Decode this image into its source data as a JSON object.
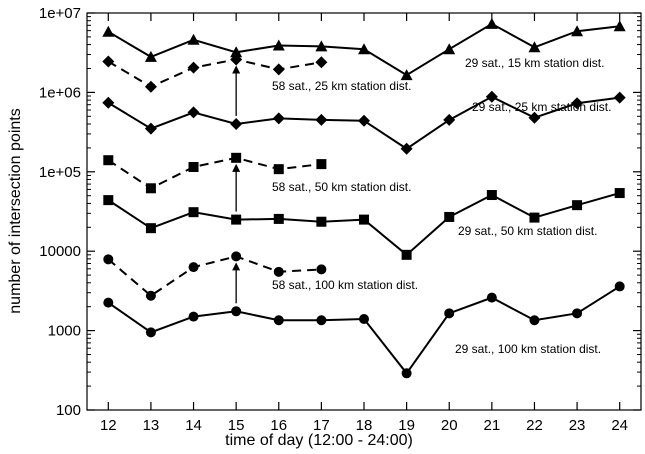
{
  "chart_data": {
    "type": "line",
    "xlabel": "time of day (12:00 - 24:00)",
    "ylabel": "number of intersection points",
    "x_ticks": [
      12,
      13,
      14,
      15,
      16,
      17,
      18,
      19,
      20,
      21,
      22,
      23,
      24
    ],
    "y_scale": "log",
    "y_ticks": [
      "100",
      "1000",
      "10000",
      "1e+05",
      "1e+06",
      "1e+07"
    ],
    "xlim": [
      11.5,
      24.5
    ],
    "ylim": [
      100,
      10000000
    ],
    "grid": false,
    "series": [
      {
        "name": "29 sat., 15 km station dist.",
        "marker": "triangle",
        "line": "solid",
        "x": [
          12,
          13,
          14,
          15,
          16,
          17,
          18,
          19,
          20,
          21,
          22,
          23,
          24
        ],
        "y": [
          5800000,
          2800000,
          4600000,
          3200000,
          3900000,
          3800000,
          3500000,
          1650000,
          3500000,
          7300000,
          3700000,
          5900000,
          6800000
        ]
      },
      {
        "name": "58 sat., 25 km station dist.",
        "marker": "diamond",
        "line": "dashed",
        "x": [
          12,
          13,
          14,
          15,
          16,
          17
        ],
        "y": [
          2450000,
          1180000,
          2050000,
          2600000,
          1950000,
          2400000
        ]
      },
      {
        "name": "29 sat., 25 km station dist.",
        "marker": "diamond",
        "line": "solid",
        "x": [
          12,
          13,
          14,
          15,
          16,
          17,
          18,
          19,
          20,
          21,
          22,
          23,
          24
        ],
        "y": [
          740000,
          350000,
          560000,
          400000,
          470000,
          450000,
          440000,
          195000,
          450000,
          880000,
          480000,
          730000,
          860000
        ]
      },
      {
        "name": "58 sat., 50 km station dist.",
        "marker": "square",
        "line": "dashed",
        "x": [
          12,
          13,
          14,
          15,
          16,
          17
        ],
        "y": [
          140000,
          62000,
          115000,
          150000,
          108000,
          125000
        ]
      },
      {
        "name": "29 sat., 50 km station dist.",
        "marker": "square",
        "line": "solid",
        "x": [
          12,
          13,
          14,
          15,
          16,
          17,
          18,
          19,
          20,
          21,
          22,
          23,
          24
        ],
        "y": [
          44000,
          19500,
          31000,
          25000,
          25500,
          23500,
          25000,
          9000,
          27000,
          51000,
          26500,
          38000,
          54000
        ]
      },
      {
        "name": "58 sat., 100 km station dist.",
        "marker": "circle",
        "line": "dashed",
        "x": [
          12,
          13,
          14,
          15,
          16,
          17
        ],
        "y": [
          7900,
          2750,
          6300,
          8600,
          5500,
          5900
        ]
      },
      {
        "name": "29 sat., 100 km station dist.",
        "marker": "circle",
        "line": "solid",
        "x": [
          12,
          13,
          14,
          15,
          16,
          17,
          18,
          19,
          20,
          21,
          22,
          23,
          24
        ],
        "y": [
          2250,
          950,
          1500,
          1750,
          1350,
          1350,
          1400,
          290,
          1650,
          2600,
          1350,
          1650,
          3600
        ]
      }
    ],
    "arrows": [
      {
        "x": 15,
        "from": 400000,
        "to": 2600000
      },
      {
        "x": 15,
        "from": 25000,
        "to": 150000
      },
      {
        "x": 15,
        "from": 1750,
        "to": 8600
      }
    ],
    "annotations": [
      {
        "text": "29 sat., 15 km station dist."
      },
      {
        "text": "58 sat., 25 km station dist."
      },
      {
        "text": "29 sat., 25 km station dist."
      },
      {
        "text": "58 sat., 50 km station dist."
      },
      {
        "text": "29 sat., 50 km station dist."
      },
      {
        "text": "58 sat., 100 km station dist."
      },
      {
        "text": "29 sat., 100 km station dist."
      }
    ]
  }
}
